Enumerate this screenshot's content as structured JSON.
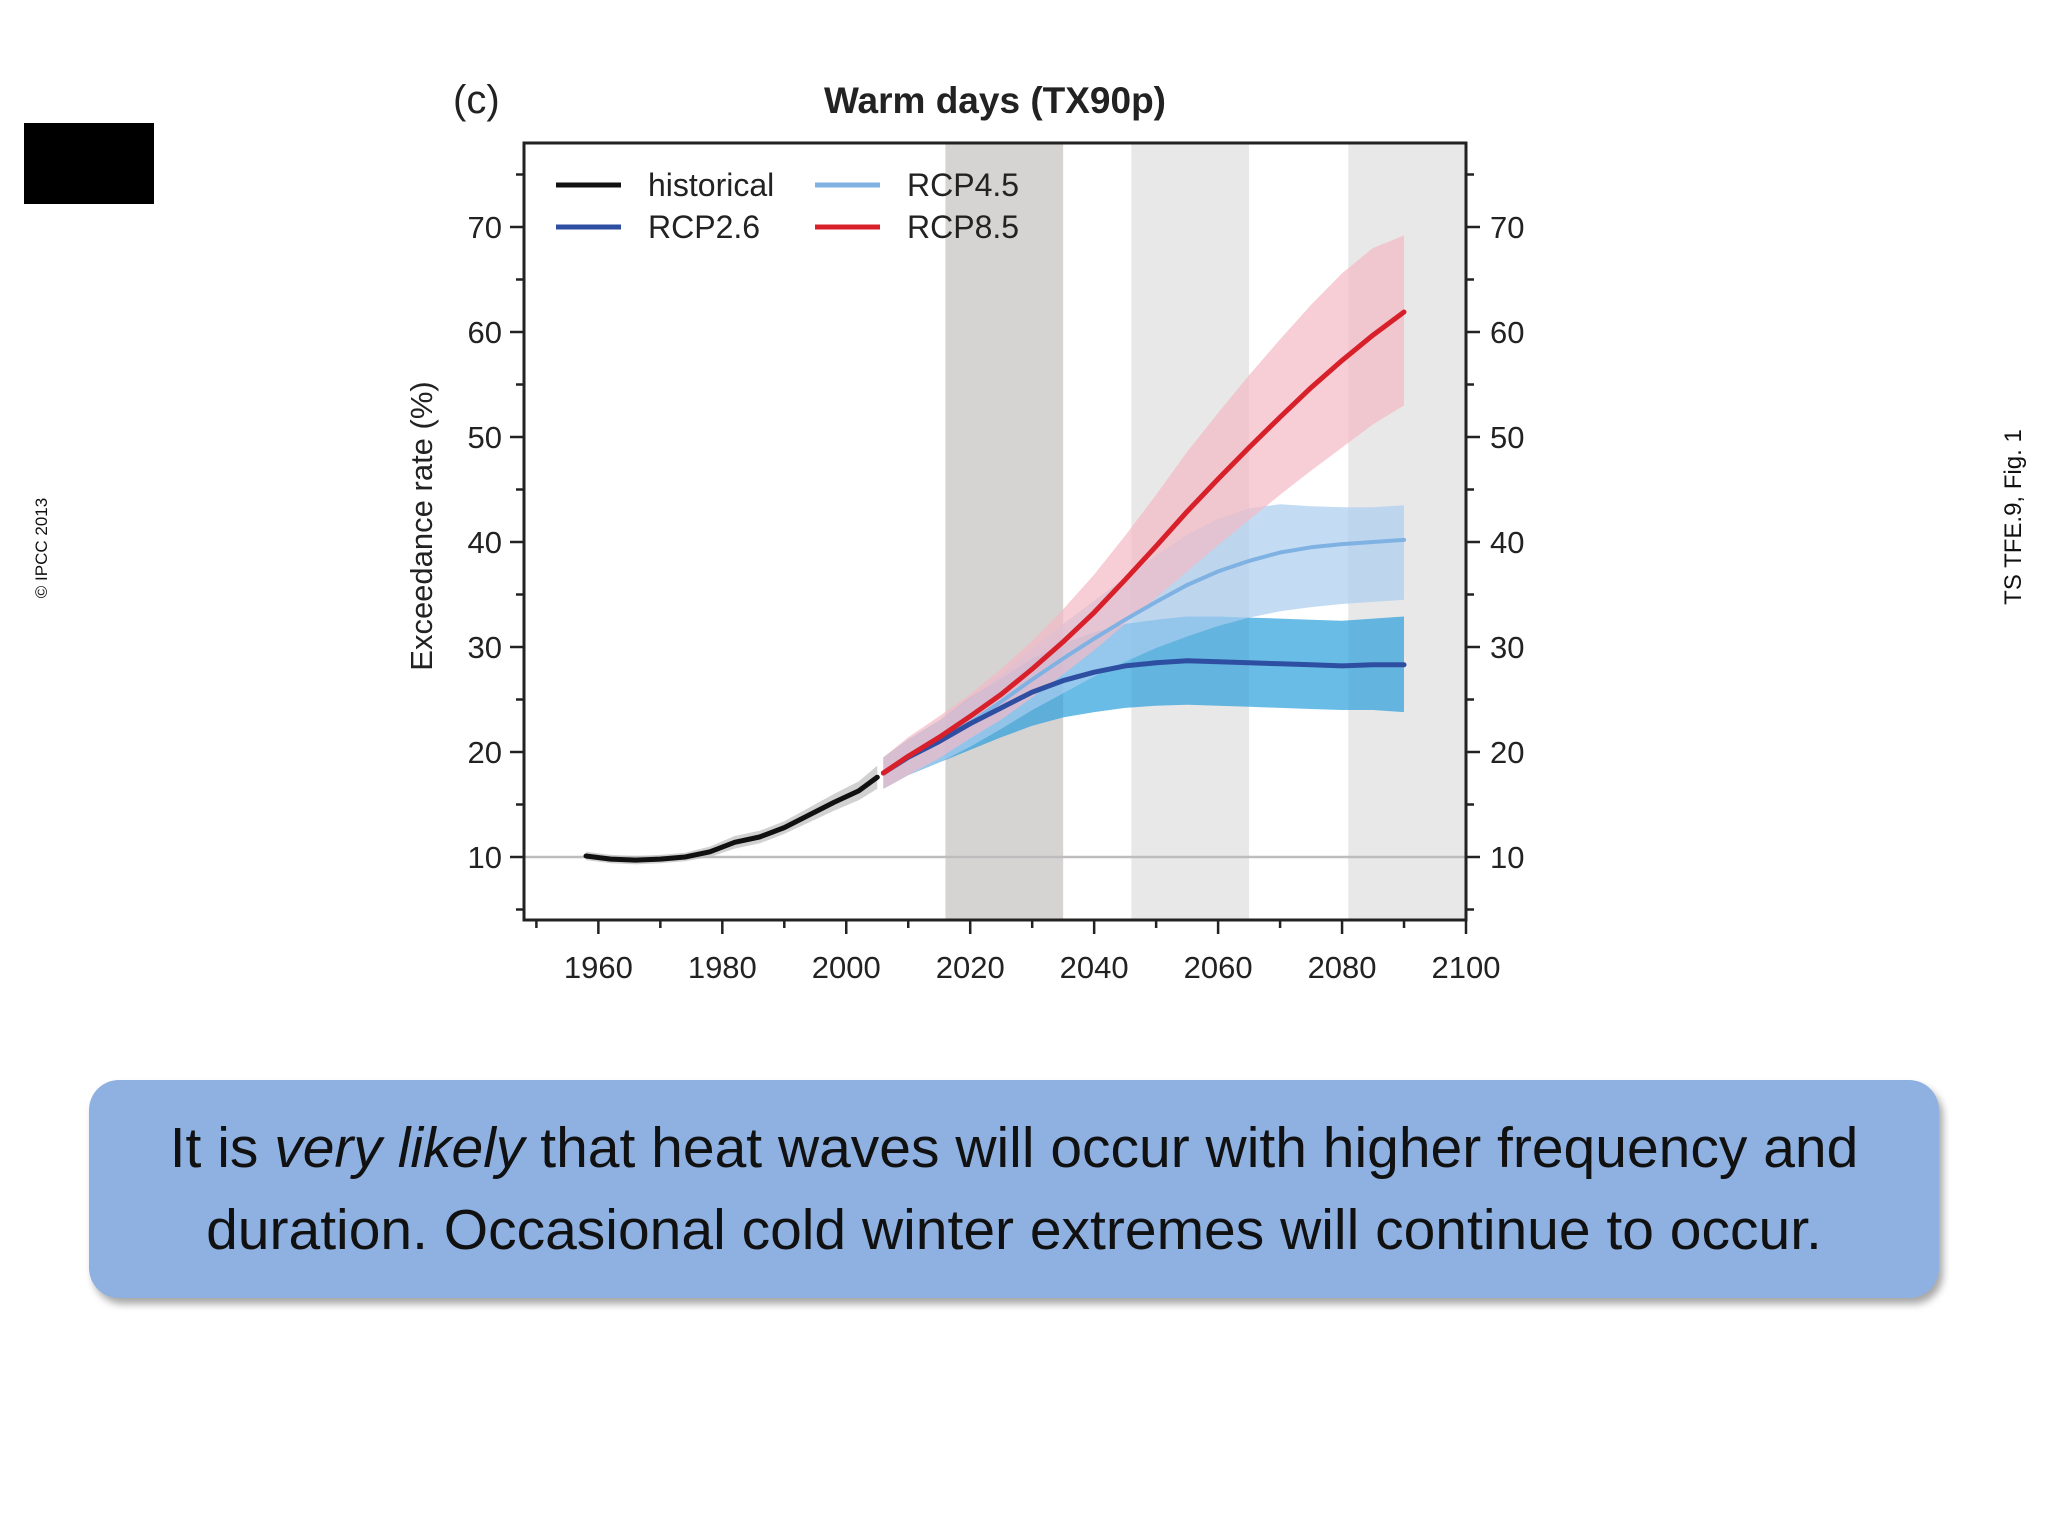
{
  "slide": {
    "copyright": "© IPCC 2013",
    "figure_ref": "TS TFE.9, Fig. 1",
    "caption": {
      "before": "It is ",
      "emphasis": "very likely",
      "after": " that heat waves will occur with higher frequency and duration. Occasional cold winter extremes will continue to occur."
    }
  },
  "chart_data": {
    "type": "line",
    "panel_label": "(c)",
    "title": "Warm days (TX90p)",
    "ylabel": "Exceedance rate (%)",
    "xlabel": "",
    "xlim": [
      1948,
      2100
    ],
    "ylim": [
      4,
      78
    ],
    "xticks": [
      1960,
      1980,
      2000,
      2020,
      2040,
      2060,
      2080,
      2100
    ],
    "yticks": [
      10,
      20,
      30,
      40,
      50,
      60,
      70
    ],
    "reference_line": 10,
    "shaded_periods": [
      {
        "range": [
          2016,
          2035
        ],
        "color": "#d6d3d3"
      },
      {
        "range": [
          2046,
          2065
        ],
        "color": "#e9e8e8"
      },
      {
        "range": [
          2081,
          2100
        ],
        "color": "#e9e8e8"
      }
    ],
    "legend": {
      "placement": "top-left",
      "columns": 2
    },
    "series": [
      {
        "name": "historical",
        "color": "#111111",
        "x": [
          1958,
          1962,
          1966,
          1970,
          1974,
          1978,
          1982,
          1986,
          1990,
          1994,
          1998,
          2002,
          2005
        ],
        "y": [
          10.1,
          9.8,
          9.7,
          9.8,
          10.0,
          10.5,
          11.4,
          11.9,
          12.8,
          14.0,
          15.2,
          16.3,
          17.6
        ],
        "lower": [
          9.7,
          9.4,
          9.3,
          9.4,
          9.6,
          10.0,
          10.8,
          11.3,
          12.2,
          13.3,
          14.4,
          15.4,
          16.5
        ],
        "upper": [
          10.5,
          10.2,
          10.1,
          10.2,
          10.4,
          11.0,
          12.0,
          12.5,
          13.4,
          14.7,
          16.0,
          17.2,
          18.7
        ],
        "band_color": "#bdbdbd"
      },
      {
        "name": "RCP2.6",
        "color": "#2e4ea2",
        "x": [
          2006,
          2010,
          2015,
          2020,
          2025,
          2030,
          2035,
          2040,
          2045,
          2050,
          2055,
          2060,
          2065,
          2070,
          2075,
          2080,
          2085,
          2090
        ],
        "y": [
          18.0,
          19.5,
          21.0,
          22.7,
          24.2,
          25.7,
          26.8,
          27.6,
          28.2,
          28.5,
          28.7,
          28.6,
          28.5,
          28.4,
          28.3,
          28.2,
          28.3,
          28.3
        ],
        "lower": [
          16.5,
          17.8,
          19.0,
          20.2,
          21.4,
          22.5,
          23.3,
          23.8,
          24.2,
          24.4,
          24.5,
          24.4,
          24.3,
          24.2,
          24.1,
          24.0,
          24.0,
          23.8
        ],
        "upper": [
          19.5,
          21.2,
          23.0,
          25.2,
          27.0,
          28.9,
          30.3,
          31.4,
          32.2,
          32.6,
          32.9,
          32.9,
          32.8,
          32.7,
          32.6,
          32.5,
          32.7,
          32.9
        ],
        "band_color": "#29a0dc"
      },
      {
        "name": "RCP4.5",
        "color": "#7fb2e3",
        "x": [
          2006,
          2010,
          2015,
          2020,
          2025,
          2030,
          2035,
          2040,
          2045,
          2050,
          2055,
          2060,
          2065,
          2070,
          2075,
          2080,
          2085,
          2090
        ],
        "y": [
          18.0,
          19.5,
          21.0,
          22.8,
          24.8,
          26.9,
          28.9,
          30.8,
          32.6,
          34.3,
          35.9,
          37.2,
          38.2,
          39.0,
          39.5,
          39.8,
          40.0,
          40.2
        ],
        "lower": [
          16.5,
          17.8,
          19.0,
          20.5,
          22.2,
          24.0,
          25.6,
          27.2,
          28.6,
          29.9,
          31.0,
          32.0,
          32.8,
          33.4,
          33.8,
          34.1,
          34.3,
          34.5
        ],
        "upper": [
          19.5,
          21.2,
          23.0,
          25.1,
          27.4,
          29.8,
          32.2,
          34.4,
          36.6,
          38.7,
          40.7,
          42.2,
          43.2,
          43.6,
          43.4,
          43.3,
          43.3,
          43.5
        ],
        "band_color": "#a9cdf0"
      },
      {
        "name": "RCP8.5",
        "color": "#d8202b",
        "x": [
          2006,
          2010,
          2015,
          2020,
          2025,
          2030,
          2035,
          2040,
          2045,
          2050,
          2055,
          2060,
          2065,
          2070,
          2075,
          2080,
          2085,
          2090
        ],
        "y": [
          18.0,
          19.6,
          21.4,
          23.4,
          25.5,
          27.9,
          30.5,
          33.3,
          36.4,
          39.6,
          42.9,
          46.0,
          49.0,
          51.9,
          54.7,
          57.3,
          59.7,
          61.9
        ],
        "lower": [
          16.5,
          17.8,
          19.4,
          21.3,
          23.1,
          25.2,
          27.4,
          29.7,
          32.2,
          34.7,
          37.2,
          39.7,
          42.1,
          44.5,
          46.8,
          49.0,
          51.2,
          53.0
        ],
        "upper": [
          19.5,
          21.4,
          23.4,
          25.5,
          27.9,
          30.6,
          33.6,
          36.9,
          40.6,
          44.5,
          48.6,
          52.3,
          55.9,
          59.3,
          62.6,
          65.6,
          68.0,
          69.2
        ],
        "band_color": "#f4b9c4"
      }
    ]
  }
}
